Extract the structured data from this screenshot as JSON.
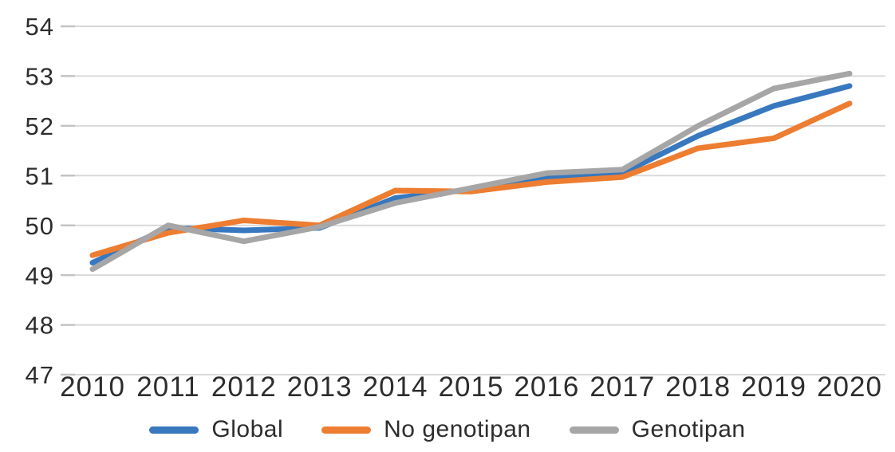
{
  "chart_data": {
    "type": "line",
    "title": "",
    "xlabel": "",
    "ylabel": "",
    "categories": [
      "2010",
      "2011",
      "2012",
      "2013",
      "2014",
      "2015",
      "2016",
      "2017",
      "2018",
      "2019",
      "2020"
    ],
    "series": [
      {
        "name": "Global",
        "color": "#3778BE",
        "values": [
          49.25,
          49.95,
          49.9,
          49.95,
          50.55,
          50.72,
          50.95,
          51.05,
          51.8,
          52.4,
          52.8
        ]
      },
      {
        "name": "No genotipan",
        "color": "#ED7D31",
        "values": [
          49.4,
          49.85,
          50.1,
          50.0,
          50.7,
          50.68,
          50.87,
          50.97,
          51.55,
          51.75,
          52.45
        ]
      },
      {
        "name": "Genotipan",
        "color": "#A6A6A6",
        "values": [
          49.12,
          50.0,
          49.68,
          49.97,
          50.45,
          50.75,
          51.05,
          51.12,
          52.0,
          52.75,
          53.05
        ]
      }
    ],
    "y_ticks": [
      54,
      53,
      52,
      51,
      50,
      49,
      48,
      47
    ],
    "ylim": [
      47,
      54
    ],
    "grid": "horizontal",
    "gridline_color": "#D9D9D9",
    "axis_tick_color": "#C4C4C4",
    "text_color": "#2d2d2d",
    "background_color": "#FFFFFF",
    "legend_position": "bottom"
  }
}
